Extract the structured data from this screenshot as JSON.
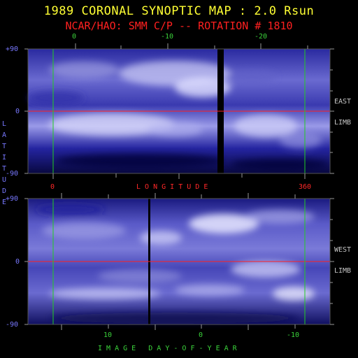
{
  "title": "1989 CORONAL SYNOPTIC MAP : 2.0 Rsun",
  "subtitle": "NCAR/HAO: SMM C/P -- ROTATION # 1810",
  "top_panel": {
    "x_top_ticks": [
      "0",
      "-10",
      "-20"
    ],
    "x_bottom_ticks": [
      "0",
      "360"
    ],
    "x_label": "L O N G I T U D E",
    "y_ticks": [
      "+90",
      "0",
      "-90"
    ],
    "side_labels": [
      "EAST",
      "LIMB"
    ]
  },
  "bottom_panel": {
    "y_ticks": [
      "+90",
      "0",
      "-90"
    ],
    "x_ticks": [
      "10",
      "0",
      "-10"
    ],
    "x_label": "I M A G E   D A Y - O F - Y E A R",
    "side_labels": [
      "WEST",
      "LIMB"
    ]
  },
  "y_axis_label": "L A T I T U D E",
  "colors": {
    "background": "#000000",
    "title": "#ffff33",
    "subtitle": "#ff2020",
    "axis_text": "#7878ff",
    "day_text": "#3ad23a",
    "equator_line": "#ff2020",
    "meridian_line": "#22cc22",
    "map_base": "#101070",
    "map_bright": "#e8e8ff"
  }
}
